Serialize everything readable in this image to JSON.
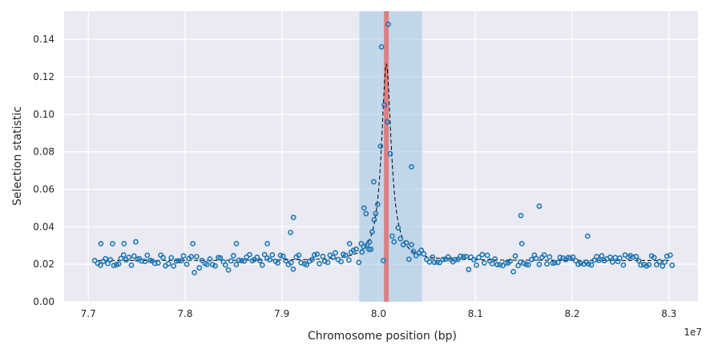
{
  "colors": {
    "background": "#eaeaf2",
    "grid": "#ffffff",
    "points": "#1f77b4",
    "fit_line": "#000000",
    "selection_band": "#a6c8e4",
    "peak_marker": "#e07070"
  },
  "chart_data": {
    "type": "scatter",
    "xlabel": "Chromosome position (bp)",
    "ylabel": "Selection statistic",
    "x_offset_label": "1e7",
    "xlim": [
      7.675,
      8.33
    ],
    "ylim": [
      0.0,
      0.155
    ],
    "xticks": [
      7.7,
      7.8,
      7.9,
      8.0,
      8.1,
      8.2,
      8.3
    ],
    "xtick_labels": [
      "7.7",
      "7.8",
      "7.9",
      "8.0",
      "8.1",
      "8.2",
      "8.3"
    ],
    "yticks": [
      0.0,
      0.02,
      0.04,
      0.06,
      0.08,
      0.1,
      0.12,
      0.14
    ],
    "ytick_labels": [
      "0.00",
      "0.02",
      "0.04",
      "0.06",
      "0.08",
      "0.10",
      "0.12",
      "0.14"
    ],
    "grid": true,
    "highlight_region": [
      7.98,
      8.045
    ],
    "peak_position": 8.008,
    "fit_line": {
      "baseline": 0.022,
      "peak": 0.127,
      "center": 8.008,
      "width": 0.006,
      "xrange": [
        7.71,
        8.3
      ]
    },
    "outliers": [
      {
        "x": 8.01,
        "y": 0.148
      },
      {
        "x": 8.003,
        "y": 0.136
      },
      {
        "x": 8.006,
        "y": 0.105
      },
      {
        "x": 8.009,
        "y": 0.096
      },
      {
        "x": 8.012,
        "y": 0.079
      },
      {
        "x": 8.002,
        "y": 0.083
      },
      {
        "x": 8.034,
        "y": 0.072
      },
      {
        "x": 7.995,
        "y": 0.064
      },
      {
        "x": 7.997,
        "y": 0.047
      },
      {
        "x": 7.999,
        "y": 0.052
      },
      {
        "x": 7.985,
        "y": 0.05
      },
      {
        "x": 7.987,
        "y": 0.047
      },
      {
        "x": 8.014,
        "y": 0.035
      },
      {
        "x": 8.016,
        "y": 0.032
      },
      {
        "x": 7.99,
        "y": 0.028
      },
      {
        "x": 7.992,
        "y": 0.028
      },
      {
        "x": 7.912,
        "y": 0.045
      },
      {
        "x": 7.909,
        "y": 0.037
      },
      {
        "x": 7.97,
        "y": 0.031
      },
      {
        "x": 7.982,
        "y": 0.031
      },
      {
        "x": 8.147,
        "y": 0.046
      },
      {
        "x": 8.148,
        "y": 0.031
      },
      {
        "x": 8.166,
        "y": 0.051
      },
      {
        "x": 8.216,
        "y": 0.035
      },
      {
        "x": 7.749,
        "y": 0.032
      },
      {
        "x": 7.713,
        "y": 0.031
      },
      {
        "x": 7.725,
        "y": 0.031
      },
      {
        "x": 7.737,
        "y": 0.031
      },
      {
        "x": 7.808,
        "y": 0.031
      },
      {
        "x": 7.853,
        "y": 0.031
      },
      {
        "x": 7.885,
        "y": 0.031
      },
      {
        "x": 8.005,
        "y": 0.022
      }
    ],
    "series_seed": 7
  }
}
